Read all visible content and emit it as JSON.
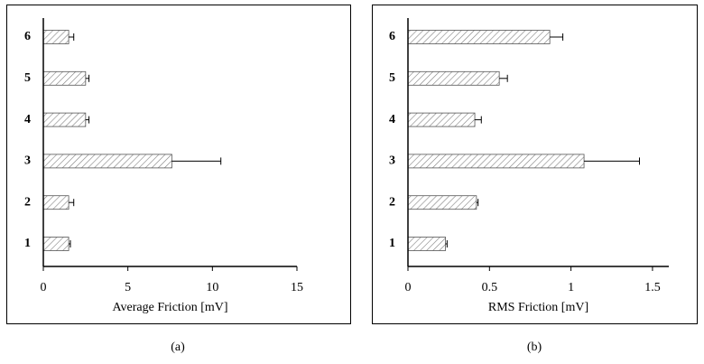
{
  "chart_data": [
    {
      "type": "hbar",
      "xlabel": "Average Friction [mV]",
      "caption": "(a)",
      "categories": [
        "1",
        "2",
        "3",
        "4",
        "5",
        "6"
      ],
      "values": [
        1.5,
        1.5,
        7.6,
        2.5,
        2.5,
        1.5
      ],
      "errors": [
        0.1,
        0.3,
        2.9,
        0.2,
        0.2,
        0.3
      ],
      "color": "#808080",
      "xlim": [
        0,
        15
      ],
      "xticks": [
        0,
        5,
        10,
        15
      ]
    },
    {
      "type": "hbar",
      "xlabel": "RMS Friction [mV]",
      "caption": "(b)",
      "categories": [
        "1",
        "2",
        "3",
        "4",
        "5",
        "6"
      ],
      "values": [
        0.23,
        0.42,
        1.08,
        0.41,
        0.56,
        0.87
      ],
      "errors": [
        0.01,
        0.01,
        0.34,
        0.04,
        0.05,
        0.08
      ],
      "color": "#808080",
      "xlim": [
        0,
        1.6
      ],
      "xticks": [
        0,
        0.5,
        1,
        1.5
      ]
    }
  ]
}
